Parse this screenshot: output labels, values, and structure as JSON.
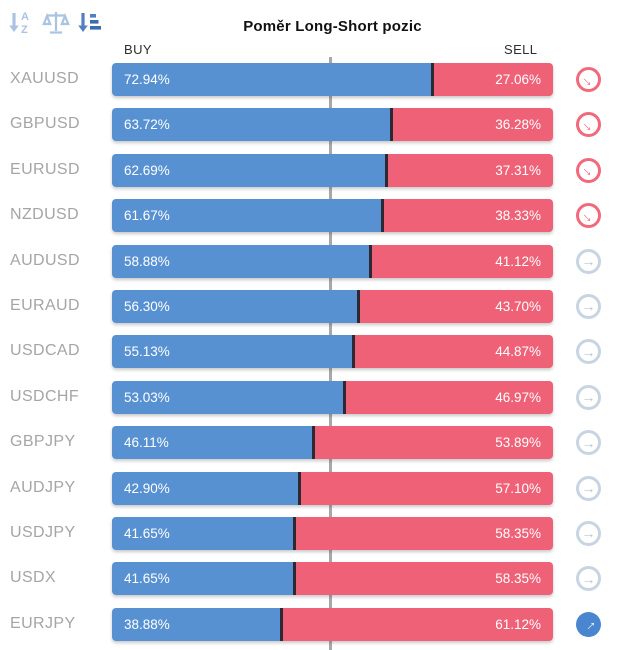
{
  "header": {
    "title": "Poměr Long-Short pozic",
    "buy_label": "BUY",
    "sell_label": "SELL"
  },
  "toolbar": {
    "icons": [
      "sort-alphabetical-icon",
      "scales-icon",
      "sort-amount-icon"
    ]
  },
  "icons": {
    "arrow_glyph": "→"
  },
  "colors": {
    "buy_bar": "#5791d1",
    "sell_bar": "#ee6176",
    "divider": "#2e2833",
    "trend_strong_sell": "#f2697b",
    "trend_neutral": "#b6c4d6",
    "trend_buy": "#4a86d0",
    "symbol_text": "#a5a5a5",
    "center_line": "#a8a8a8"
  },
  "chart_data": {
    "type": "bar",
    "orientation": "horizontal-stacked",
    "title": "Poměr Long-Short pozic",
    "categories": [
      "XAUUSD",
      "GBPUSD",
      "EURUSD",
      "NZDUSD",
      "AUDUSD",
      "EURAUD",
      "USDCAD",
      "USDCHF",
      "GBPJPY",
      "AUDJPY",
      "USDJPY",
      "USDX",
      "EURJPY"
    ],
    "series": [
      {
        "name": "BUY",
        "values": [
          72.94,
          63.72,
          62.69,
          61.67,
          58.88,
          56.3,
          55.13,
          53.03,
          46.11,
          42.9,
          41.65,
          41.65,
          38.88
        ]
      },
      {
        "name": "SELL",
        "values": [
          27.06,
          36.28,
          37.31,
          38.33,
          41.12,
          43.7,
          44.87,
          46.97,
          53.89,
          57.1,
          58.35,
          58.35,
          61.12
        ]
      }
    ],
    "xlim": [
      0,
      100
    ],
    "center_marker": 50,
    "legend_position": "top",
    "grid": false
  },
  "rows": [
    {
      "symbol": "XAUUSD",
      "buy": "72.94%",
      "sell": "27.06%",
      "buy_value": 72.94,
      "trend": "down"
    },
    {
      "symbol": "GBPUSD",
      "buy": "63.72%",
      "sell": "36.28%",
      "buy_value": 63.72,
      "trend": "down"
    },
    {
      "symbol": "EURUSD",
      "buy": "62.69%",
      "sell": "37.31%",
      "buy_value": 62.69,
      "trend": "down"
    },
    {
      "symbol": "NZDUSD",
      "buy": "61.67%",
      "sell": "38.33%",
      "buy_value": 61.67,
      "trend": "down"
    },
    {
      "symbol": "AUDUSD",
      "buy": "58.88%",
      "sell": "41.12%",
      "buy_value": 58.88,
      "trend": "flat"
    },
    {
      "symbol": "EURAUD",
      "buy": "56.30%",
      "sell": "43.70%",
      "buy_value": 56.3,
      "trend": "flat"
    },
    {
      "symbol": "USDCAD",
      "buy": "55.13%",
      "sell": "44.87%",
      "buy_value": 55.13,
      "trend": "flat"
    },
    {
      "symbol": "USDCHF",
      "buy": "53.03%",
      "sell": "46.97%",
      "buy_value": 53.03,
      "trend": "flat"
    },
    {
      "symbol": "GBPJPY",
      "buy": "46.11%",
      "sell": "53.89%",
      "buy_value": 46.11,
      "trend": "flat"
    },
    {
      "symbol": "AUDJPY",
      "buy": "42.90%",
      "sell": "57.10%",
      "buy_value": 42.9,
      "trend": "flat"
    },
    {
      "symbol": "USDJPY",
      "buy": "41.65%",
      "sell": "58.35%",
      "buy_value": 41.65,
      "trend": "flat"
    },
    {
      "symbol": "USDX",
      "buy": "41.65%",
      "sell": "58.35%",
      "buy_value": 41.65,
      "trend": "flat"
    },
    {
      "symbol": "EURJPY",
      "buy": "38.88%",
      "sell": "61.12%",
      "buy_value": 38.88,
      "trend": "up"
    }
  ]
}
